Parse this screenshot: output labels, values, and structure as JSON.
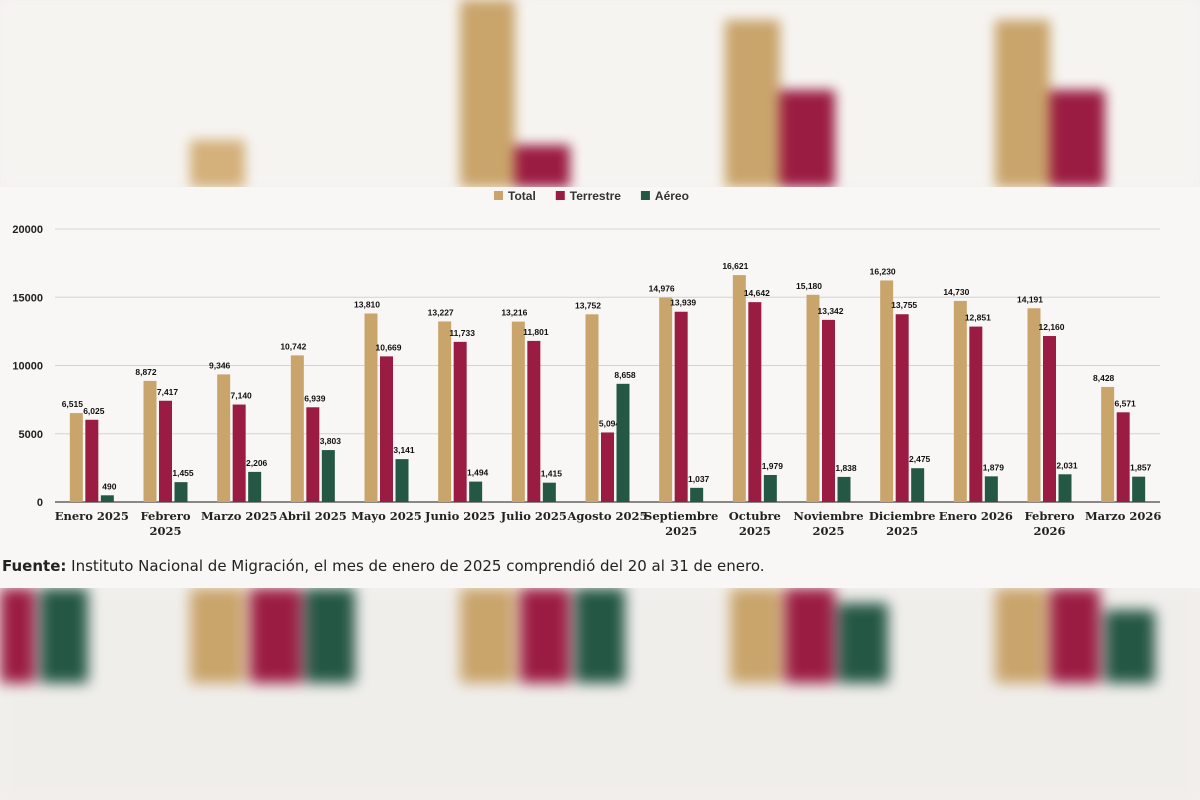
{
  "colors": {
    "total": "#c9a46b",
    "terrestre": "#9b1c42",
    "aereo": "#245744"
  },
  "source": {
    "label": "Fuente:",
    "text": " Instituto Nacional de Migración, el mes de enero de 2025 comprendió del 20 al 31 de enero."
  },
  "chart_data": {
    "type": "bar",
    "title": "",
    "xlabel": "",
    "ylabel": "",
    "ylim": [
      0,
      20000
    ],
    "yticks": [
      "0",
      "5000",
      "10000",
      "15000",
      "20000"
    ],
    "grid": true,
    "legend_position": "top-center",
    "categories": [
      [
        "Enero 2025"
      ],
      [
        "Febrero",
        "2025"
      ],
      [
        "Marzo 2025"
      ],
      [
        "Abril 2025"
      ],
      [
        "Mayo 2025"
      ],
      [
        "Junio 2025"
      ],
      [
        "Julio 2025"
      ],
      [
        "Agosto 2025"
      ],
      [
        "Septiembre",
        "2025"
      ],
      [
        "Octubre",
        "2025"
      ],
      [
        "Noviembre",
        "2025"
      ],
      [
        "Diciembre",
        "2025"
      ],
      [
        "Enero 2026"
      ],
      [
        "Febrero",
        "2026"
      ],
      [
        "Marzo 2026"
      ]
    ],
    "series": [
      {
        "name": "Total",
        "color": "#c9a46b",
        "values": [
          6515,
          8872,
          9346,
          10742,
          13810,
          13227,
          13216,
          13752,
          14976,
          16621,
          15180,
          16230,
          14730,
          14191,
          8428
        ],
        "labels": [
          "6,515",
          "8,872",
          "9,346",
          "10,742",
          "13,810",
          "13,227",
          "13,216",
          "13,752",
          "14,976",
          "16,621",
          "15,180",
          "16,230",
          "14,730",
          "14,191",
          "8,428"
        ]
      },
      {
        "name": "Terrestre",
        "color": "#9b1c42",
        "values": [
          6025,
          7417,
          7140,
          6939,
          10669,
          11733,
          11801,
          5094,
          13939,
          14642,
          13342,
          13755,
          12851,
          12160,
          6571
        ],
        "labels": [
          "6,025",
          "7,417",
          "7,140",
          "6,939",
          "10,669",
          "11,733",
          "11,801",
          "5,094",
          "13,939",
          "14,642",
          "13,342",
          "13,755",
          "12,851",
          "12,160",
          "6,571"
        ]
      },
      {
        "name": "Aéreo",
        "color": "#245744",
        "values": [
          490,
          1455,
          2206,
          3803,
          3141,
          1494,
          1415,
          8658,
          1037,
          1979,
          1838,
          2475,
          1879,
          2031,
          1857
        ],
        "labels": [
          "490",
          "1,455",
          "2,206",
          "3,803",
          "3,141",
          "1,494",
          "1,415",
          "8,658",
          "1,037",
          "1,979",
          "1,838",
          "2,475",
          "1,879",
          "2,031",
          "1,857"
        ]
      }
    ]
  }
}
